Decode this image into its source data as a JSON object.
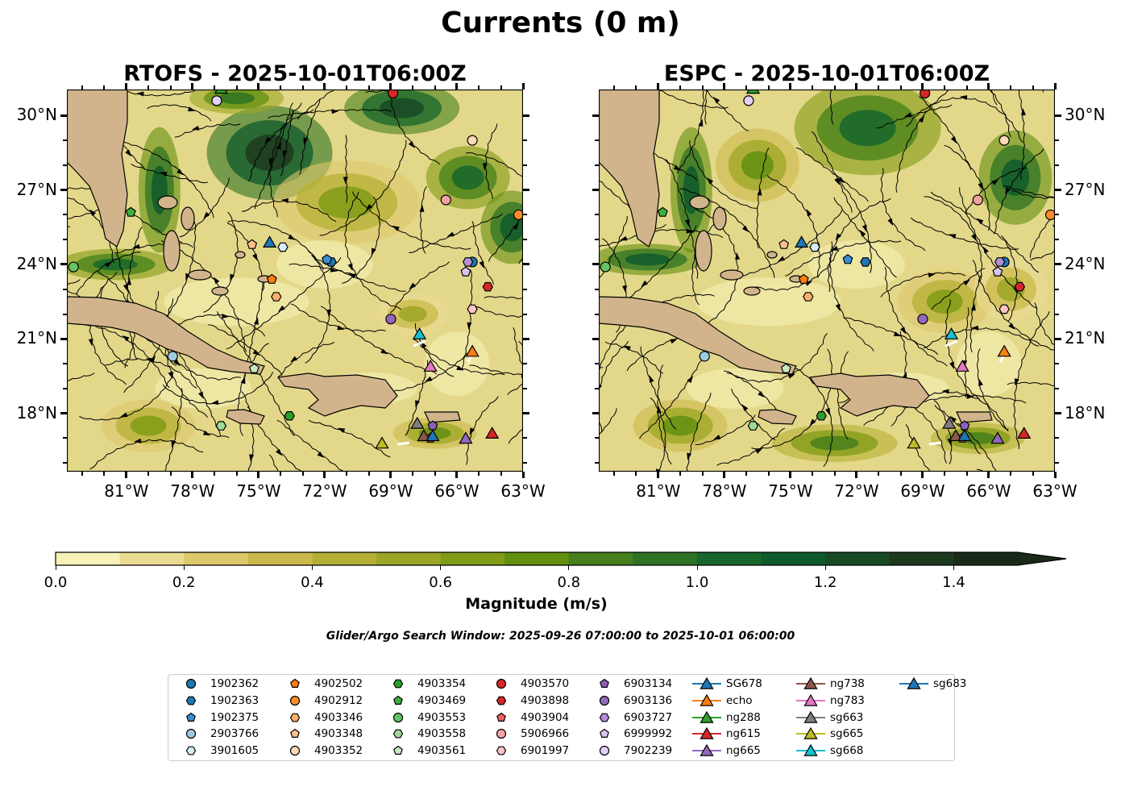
{
  "title": "Currents (0 m)",
  "panels": [
    {
      "title": "RTOFS - 2025-10-01T06:00Z"
    },
    {
      "title": "ESPC - 2025-10-01T06:00Z"
    }
  ],
  "axes": {
    "lat_ticks": [
      "30°N",
      "27°N",
      "24°N",
      "21°N",
      "18°N"
    ],
    "lon_ticks": [
      "81°W",
      "78°W",
      "75°W",
      "72°W",
      "69°W",
      "66°W",
      "63°W"
    ]
  },
  "colorbar": {
    "label": "Magnitude (m/s)",
    "ticks": [
      "0.0",
      "0.2",
      "0.4",
      "0.6",
      "0.8",
      "1.0",
      "1.2",
      "1.4"
    ],
    "colors": [
      "#f8f2b8",
      "#eadb93",
      "#dcc86b",
      "#cbb94b",
      "#b5b035",
      "#9ca625",
      "#809b15",
      "#62900f",
      "#46801a",
      "#2e7323",
      "#17662b",
      "#0f5a2c",
      "#184a25",
      "#1d3a1f",
      "#1a2a18"
    ]
  },
  "search_window": "Glider/Argo Search Window: 2025-09-26 07:00:00 to 2025-10-01 06:00:00",
  "legend": [
    {
      "label": "1902362",
      "marker": "circle",
      "color": "#1f77b4"
    },
    {
      "label": "1902363",
      "marker": "hexagon",
      "color": "#1f77b4"
    },
    {
      "label": "1902375",
      "marker": "pentagon",
      "color": "#3a8fd0"
    },
    {
      "label": "2903766",
      "marker": "circle",
      "color": "#9ecae1"
    },
    {
      "label": "3901605",
      "marker": "hexagon",
      "color": "#d6eef8"
    },
    {
      "label": "4902502",
      "marker": "pentagon",
      "color": "#ff7f0e"
    },
    {
      "label": "4902912",
      "marker": "circle",
      "color": "#ff8c2a"
    },
    {
      "label": "4903346",
      "marker": "hexagon",
      "color": "#fdae6b"
    },
    {
      "label": "4903348",
      "marker": "pentagon",
      "color": "#fdc08c"
    },
    {
      "label": "4903352",
      "marker": "circle",
      "color": "#fdd9b5"
    },
    {
      "label": "4903354",
      "marker": "hexagon",
      "color": "#2ca02c"
    },
    {
      "label": "4903469",
      "marker": "pentagon",
      "color": "#3cb03c"
    },
    {
      "label": "4903553",
      "marker": "circle",
      "color": "#66c266"
    },
    {
      "label": "4903558",
      "marker": "hexagon",
      "color": "#a1d99b"
    },
    {
      "label": "4903561",
      "marker": "pentagon",
      "color": "#c7e9c0"
    },
    {
      "label": "4903570",
      "marker": "circle",
      "color": "#d62728"
    },
    {
      "label": "4903898",
      "marker": "hexagon",
      "color": "#d62728"
    },
    {
      "label": "4903904",
      "marker": "pentagon",
      "color": "#f06060"
    },
    {
      "label": "5906966",
      "marker": "circle",
      "color": "#f4a3a3"
    },
    {
      "label": "6901997",
      "marker": "hexagon",
      "color": "#fcc5c5"
    },
    {
      "label": "6903134",
      "marker": "pentagon",
      "color": "#8c5fb8"
    },
    {
      "label": "6903136",
      "marker": "circle",
      "color": "#9467bd"
    },
    {
      "label": "6903727",
      "marker": "hexagon",
      "color": "#b48fd8"
    },
    {
      "label": "6999992",
      "marker": "pentagon",
      "color": "#d9c4f0"
    },
    {
      "label": "7902239",
      "marker": "circle",
      "color": "#e3d0f5"
    },
    {
      "label": "SG678",
      "marker": "triangle-line",
      "color": "#1f77b4"
    },
    {
      "label": "echo",
      "marker": "triangle-line",
      "color": "#ff7f0e"
    },
    {
      "label": "ng288",
      "marker": "triangle-line",
      "color": "#2ca02c"
    },
    {
      "label": "ng615",
      "marker": "triangle-line",
      "color": "#d62728"
    },
    {
      "label": "ng665",
      "marker": "triangle-line",
      "color": "#9467bd"
    },
    {
      "label": "ng738",
      "marker": "triangle-line",
      "color": "#8c564b"
    },
    {
      "label": "ng783",
      "marker": "triangle-line",
      "color": "#e377c2"
    },
    {
      "label": "sg663",
      "marker": "triangle-line",
      "color": "#7f7f7f"
    },
    {
      "label": "sg665",
      "marker": "triangle-line",
      "color": "#bcbd22"
    },
    {
      "label": "sg668",
      "marker": "triangle-line",
      "color": "#17becf"
    },
    {
      "label": "sg683",
      "marker": "triangle-line",
      "color": "#1f77b4"
    }
  ]
}
